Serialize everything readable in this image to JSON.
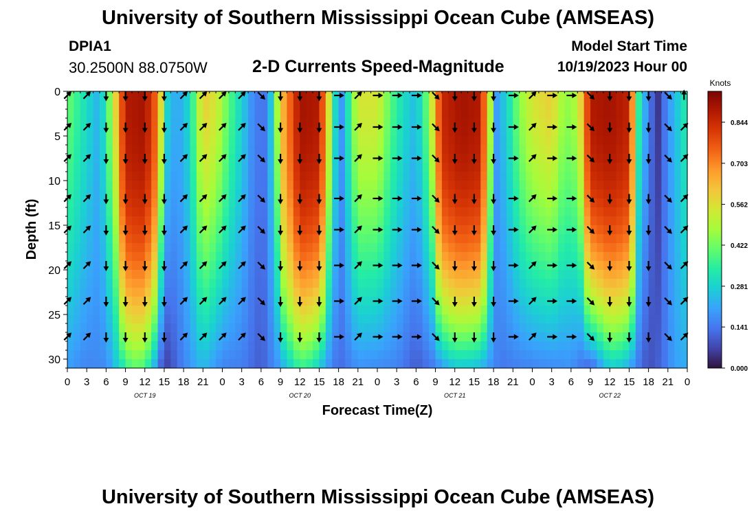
{
  "header": {
    "title": "University of Southern Mississippi Ocean Cube (AMSEAS)",
    "station_id": "DPIA1",
    "station_coords": "30.2500N  88.0750W",
    "subtitle": "2-D Currents Speed-Magnitude",
    "start_label": "Model Start Time",
    "start_value": "10/19/2023 Hour 00"
  },
  "footer": {
    "title": "University of Southern Mississippi Ocean Cube (AMSEAS)"
  },
  "chart_data": {
    "type": "heatmap",
    "title": "2-D Currents Speed-Magnitude",
    "xlabel": "Forecast Time(Z)",
    "ylabel": "Depth (ft)",
    "x_range_hours": [
      0,
      96
    ],
    "y_range_ft": [
      0,
      31
    ],
    "x_tick_hours": [
      0,
      3,
      6,
      9,
      12,
      15,
      18,
      21,
      24,
      27,
      30,
      33,
      36,
      39,
      42,
      45,
      48,
      51,
      54,
      57,
      60,
      63,
      66,
      69,
      72,
      75,
      78,
      81,
      84,
      87,
      90,
      93,
      96
    ],
    "x_tick_labels": [
      "0",
      "3",
      "6",
      "9",
      "12",
      "15",
      "18",
      "21",
      "0",
      "3",
      "6",
      "9",
      "12",
      "15",
      "18",
      "21",
      "0",
      "3",
      "6",
      "9",
      "12",
      "15",
      "18",
      "21",
      "0",
      "3",
      "6",
      "9",
      "12",
      "15",
      "18",
      "21",
      "0"
    ],
    "date_labels": [
      {
        "label": "OCT 19",
        "hour": 12
      },
      {
        "label": "OCT 20",
        "hour": 36
      },
      {
        "label": "OCT 21",
        "hour": 60
      },
      {
        "label": "OCT 22",
        "hour": 84
      }
    ],
    "y_ticks": [
      0,
      5,
      10,
      15,
      20,
      25,
      30
    ],
    "colorbar": {
      "title": "Knots",
      "ticks": [
        "0.844",
        "0.703",
        "0.562",
        "0.422",
        "0.281",
        "0.141",
        "0.000"
      ],
      "range": [
        0,
        0.95
      ]
    },
    "colormap_stops": [
      "#30123b",
      "#4145ab",
      "#4675ed",
      "#39a2fc",
      "#1bcfd4",
      "#24eca6",
      "#61fc6c",
      "#a4fc3b",
      "#d1e834",
      "#f3c63a",
      "#fe9b2d",
      "#f36315",
      "#d93806",
      "#b11901",
      "#7a0403"
    ],
    "surface_speed_profile": [
      {
        "hour": 0,
        "speed": 0.42
      },
      {
        "hour": 3,
        "speed": 0.3
      },
      {
        "hour": 5,
        "speed": 0.22
      },
      {
        "hour": 7,
        "speed": 0.5
      },
      {
        "hour": 9,
        "speed": 0.88
      },
      {
        "hour": 12,
        "speed": 0.9
      },
      {
        "hour": 14,
        "speed": 0.72
      },
      {
        "hour": 15.5,
        "speed": 0.28
      },
      {
        "hour": 17,
        "speed": 0.2
      },
      {
        "hour": 19,
        "speed": 0.3
      },
      {
        "hour": 21,
        "speed": 0.6
      },
      {
        "hour": 23,
        "speed": 0.55
      },
      {
        "hour": 25,
        "speed": 0.4
      },
      {
        "hour": 27,
        "speed": 0.28
      },
      {
        "hour": 29,
        "speed": 0.15
      },
      {
        "hour": 31,
        "speed": 0.14
      },
      {
        "hour": 33,
        "speed": 0.6
      },
      {
        "hour": 36,
        "speed": 0.9
      },
      {
        "hour": 39,
        "speed": 0.88
      },
      {
        "hour": 41,
        "speed": 0.45
      },
      {
        "hour": 42,
        "speed": 0.14
      },
      {
        "hour": 43,
        "speed": 0.25
      },
      {
        "hour": 45,
        "speed": 0.55
      },
      {
        "hour": 48,
        "speed": 0.55
      },
      {
        "hour": 50,
        "speed": 0.4
      },
      {
        "hour": 52,
        "speed": 0.3
      },
      {
        "hour": 54,
        "speed": 0.24
      },
      {
        "hour": 56,
        "speed": 0.45
      },
      {
        "hour": 58,
        "speed": 0.85
      },
      {
        "hour": 61,
        "speed": 0.9
      },
      {
        "hour": 64,
        "speed": 0.88
      },
      {
        "hour": 65.5,
        "speed": 0.5
      },
      {
        "hour": 66.5,
        "speed": 0.2
      },
      {
        "hour": 68,
        "speed": 0.28
      },
      {
        "hour": 70,
        "speed": 0.45
      },
      {
        "hour": 72,
        "speed": 0.55
      },
      {
        "hour": 75,
        "speed": 0.6
      },
      {
        "hour": 77,
        "speed": 0.45
      },
      {
        "hour": 79,
        "speed": 0.5
      },
      {
        "hour": 81,
        "speed": 0.88
      },
      {
        "hour": 84,
        "speed": 0.9
      },
      {
        "hour": 87,
        "speed": 0.86
      },
      {
        "hour": 88.5,
        "speed": 0.35
      },
      {
        "hour": 90,
        "speed": 0.15
      },
      {
        "hour": 91.5,
        "speed": 0.05
      },
      {
        "hour": 93,
        "speed": 0.18
      },
      {
        "hour": 96,
        "speed": 0.35
      }
    ],
    "bottom_speed_profile": [
      {
        "hour": 0,
        "speed": 0.2
      },
      {
        "hour": 3,
        "speed": 0.16
      },
      {
        "hour": 6,
        "speed": 0.17
      },
      {
        "hour": 8,
        "speed": 0.28
      },
      {
        "hour": 10,
        "speed": 0.4
      },
      {
        "hour": 12,
        "speed": 0.38
      },
      {
        "hour": 13.5,
        "speed": 0.22
      },
      {
        "hour": 15,
        "speed": 0.05
      },
      {
        "hour": 16.5,
        "speed": 0.1
      },
      {
        "hour": 18,
        "speed": 0.16
      },
      {
        "hour": 21,
        "speed": 0.24
      },
      {
        "hour": 24,
        "speed": 0.16
      },
      {
        "hour": 27,
        "speed": 0.15
      },
      {
        "hour": 30,
        "speed": 0.1
      },
      {
        "hour": 33,
        "speed": 0.2
      },
      {
        "hour": 36,
        "speed": 0.36
      },
      {
        "hour": 38,
        "speed": 0.32
      },
      {
        "hour": 40,
        "speed": 0.2
      },
      {
        "hour": 42,
        "speed": 0.12
      },
      {
        "hour": 45,
        "speed": 0.18
      },
      {
        "hour": 48,
        "speed": 0.17
      },
      {
        "hour": 51,
        "speed": 0.16
      },
      {
        "hour": 54,
        "speed": 0.1
      },
      {
        "hour": 57,
        "speed": 0.15
      },
      {
        "hour": 60,
        "speed": 0.26
      },
      {
        "hour": 63,
        "speed": 0.25
      },
      {
        "hour": 65,
        "speed": 0.2
      },
      {
        "hour": 67,
        "speed": 0.14
      },
      {
        "hour": 69,
        "speed": 0.15
      },
      {
        "hour": 72,
        "speed": 0.16
      },
      {
        "hour": 75,
        "speed": 0.17
      },
      {
        "hour": 78,
        "speed": 0.18
      },
      {
        "hour": 81,
        "speed": 0.1
      },
      {
        "hour": 84,
        "speed": 0.27
      },
      {
        "hour": 86,
        "speed": 0.25
      },
      {
        "hour": 88,
        "speed": 0.16
      },
      {
        "hour": 90,
        "speed": 0.08
      },
      {
        "hour": 92,
        "speed": 0.12
      },
      {
        "hour": 94,
        "speed": 0.2
      },
      {
        "hour": 96,
        "speed": 0.22
      }
    ],
    "vector_rows_depth_ft": [
      0,
      4,
      7.5,
      12,
      15.5,
      19.5,
      23.5,
      27.5
    ],
    "vectors": [
      {
        "hour": 0,
        "dir": "NE"
      },
      {
        "hour": 3,
        "dir": "NE"
      },
      {
        "hour": 6,
        "dir": "S"
      },
      {
        "hour": 9,
        "dir": "S"
      },
      {
        "hour": 12,
        "dir": "S"
      },
      {
        "hour": 15,
        "dir": "S"
      },
      {
        "hour": 18,
        "dir": "NE"
      },
      {
        "hour": 21,
        "dir": "NE"
      },
      {
        "hour": 24,
        "dir": "NE"
      },
      {
        "hour": 27,
        "dir": "NE"
      },
      {
        "hour": 30,
        "dir": "SE"
      },
      {
        "hour": 33,
        "dir": "S"
      },
      {
        "hour": 36,
        "dir": "S"
      },
      {
        "hour": 39,
        "dir": "S"
      },
      {
        "hour": 42,
        "dir": "E"
      },
      {
        "hour": 45,
        "dir": "NE"
      },
      {
        "hour": 48,
        "dir": "E"
      },
      {
        "hour": 51,
        "dir": "E"
      },
      {
        "hour": 54,
        "dir": "E"
      },
      {
        "hour": 57,
        "dir": "SE"
      },
      {
        "hour": 60,
        "dir": "S"
      },
      {
        "hour": 63,
        "dir": "S"
      },
      {
        "hour": 66,
        "dir": "S"
      },
      {
        "hour": 69,
        "dir": "E"
      },
      {
        "hour": 72,
        "dir": "NE"
      },
      {
        "hour": 75,
        "dir": "E"
      },
      {
        "hour": 78,
        "dir": "E"
      },
      {
        "hour": 81,
        "dir": "SE"
      },
      {
        "hour": 84,
        "dir": "S"
      },
      {
        "hour": 87,
        "dir": "S"
      },
      {
        "hour": 90,
        "dir": "S"
      },
      {
        "hour": 93,
        "dir": "SE"
      },
      {
        "hour": 95.5,
        "dir": "N"
      }
    ]
  }
}
